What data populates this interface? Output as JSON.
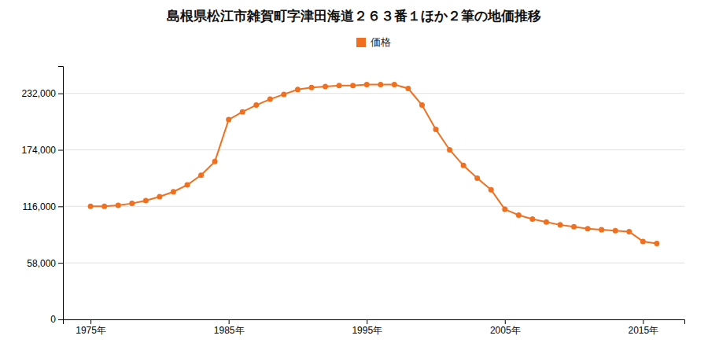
{
  "chart_data": {
    "type": "line",
    "title": "島根県松江市雑賀町字津田海道２６３番１ほか２筆の地価推移",
    "x": [
      1975,
      1976,
      1977,
      1978,
      1979,
      1980,
      1981,
      1982,
      1983,
      1984,
      1985,
      1986,
      1987,
      1988,
      1989,
      1990,
      1991,
      1992,
      1993,
      1994,
      1995,
      1996,
      1997,
      1998,
      1999,
      2000,
      2001,
      2002,
      2003,
      2004,
      2005,
      2006,
      2007,
      2008,
      2009,
      2010,
      2011,
      2012,
      2013,
      2014,
      2015,
      2016
    ],
    "series": [
      {
        "name": "価格",
        "color": "#f07020",
        "marker": "circle",
        "values": [
          116000,
          116000,
          117000,
          119000,
          122000,
          126000,
          131000,
          138000,
          148000,
          162000,
          205000,
          213000,
          220000,
          226000,
          231000,
          236000,
          238000,
          239000,
          240000,
          240000,
          241000,
          241000,
          241000,
          237000,
          220000,
          195000,
          174000,
          158000,
          145000,
          133000,
          113000,
          107000,
          103000,
          100000,
          97000,
          95000,
          93000,
          92000,
          91000,
          90000,
          80000,
          78000
        ]
      }
    ],
    "xlim": [
      1973,
      2018
    ],
    "xticks": [
      {
        "value": 1975,
        "label": "1975年"
      },
      {
        "value": 1985,
        "label": "1985年"
      },
      {
        "value": 1995,
        "label": "1995年"
      },
      {
        "value": 2005,
        "label": "2005年"
      },
      {
        "value": 2015,
        "label": "2015年"
      }
    ],
    "ylim": [
      0,
      260000
    ],
    "yticks": [
      0,
      {
        "value": 58000,
        "label": "58,000"
      },
      {
        "value": 116000,
        "label": "116,000"
      },
      {
        "value": 174000,
        "label": "174,000"
      },
      {
        "value": 232000,
        "label": "232,000"
      }
    ],
    "grid": true,
    "legend": "top"
  }
}
